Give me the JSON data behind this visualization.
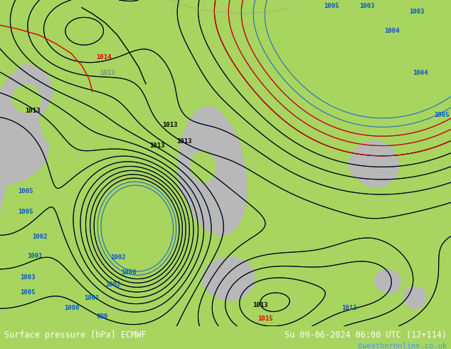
{
  "title_left": "Surface pressure [hPa] ECMWF",
  "title_right": "Su 09-06-2024 06:00 UTC (12+114)",
  "copyright": "©weatheronline.co.uk",
  "bg_color": "#a8d460",
  "water_color": "#b8b8b8",
  "footer_bg": "#000000",
  "figsize": [
    6.34,
    4.9
  ],
  "dpi": 100,
  "blue_line_color": "#0055cc",
  "black_line_color": "#000000",
  "red_line_color": "#dd0000",
  "grey_line_color": "#888888"
}
